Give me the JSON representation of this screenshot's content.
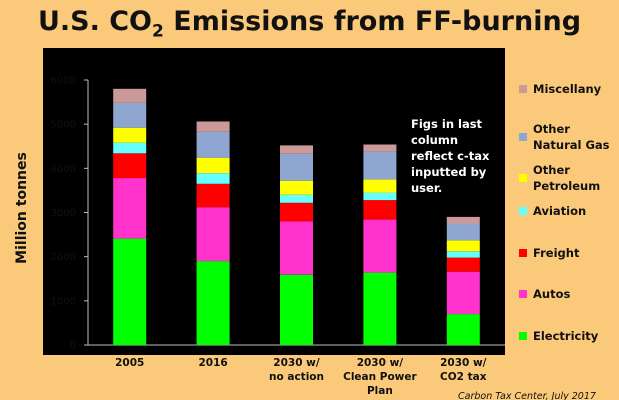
{
  "chart_data": {
    "type": "bar",
    "stacked": true,
    "title_main": "U.S. CO",
    "title_sub": "2",
    "title_rest": " Emissions from FF-burning",
    "ylabel": "Million tonnes",
    "xlabel": "",
    "ylim": [
      0,
      6000
    ],
    "yticks": [
      0,
      1000,
      2000,
      3000,
      4000,
      5000,
      6000
    ],
    "categories": [
      [
        "2005"
      ],
      [
        "2016"
      ],
      [
        "2030 w/",
        "no action"
      ],
      [
        "2030 w/",
        "Clean Power",
        "Plan"
      ],
      [
        "2030 w/",
        "CO2 tax"
      ]
    ],
    "series": [
      {
        "name": "Electricity",
        "color": "#00ff00",
        "values": [
          2410,
          1900,
          1590,
          1640,
          700
        ]
      },
      {
        "name": "Autos",
        "color": "#ff33cc",
        "values": [
          1370,
          1220,
          1210,
          1200,
          960
        ]
      },
      {
        "name": "Freight",
        "color": "#ff0000",
        "values": [
          560,
          530,
          420,
          440,
          320
        ]
      },
      {
        "name": "Aviation",
        "color": "#66ffff",
        "values": [
          240,
          240,
          180,
          170,
          140
        ]
      },
      {
        "name": "Other\nPetroleum",
        "color": "#ffff00",
        "values": [
          340,
          350,
          320,
          300,
          250
        ]
      },
      {
        "name": "Other\nNatural Gas",
        "color": "#8fa6d0",
        "values": [
          560,
          590,
          610,
          630,
          380
        ]
      },
      {
        "name": "Miscellany",
        "color": "#cc9999",
        "values": [
          320,
          230,
          190,
          160,
          150
        ]
      }
    ],
    "grid": false,
    "legend_position": "right",
    "annotation": "Figs in last\ncolumn\nreflect c-tax\ninputted by\nuser.",
    "credit": "Carbon Tax Center, July 2017"
  }
}
